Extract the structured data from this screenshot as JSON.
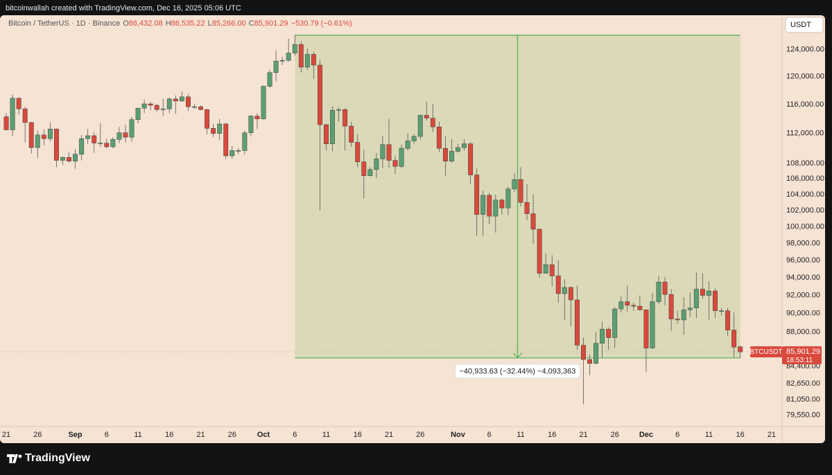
{
  "header": {
    "credit": "bitcoinwallah created with TradingView.com, Dec 16, 2025 05:06 UTC",
    "brand": "TradingView"
  },
  "chart_data": {
    "type": "candlestick",
    "legend": {
      "symbol": "Bitcoin / TetherUS · 1D · Binance",
      "fields": [
        {
          "key": "O",
          "value": "86,432.08"
        },
        {
          "key": "H",
          "value": "86,535.22"
        },
        {
          "key": "L",
          "value": "85,266.00"
        },
        {
          "key": "C",
          "value": "85,901.29"
        }
      ],
      "change": "−530.79 (−0.61%)"
    },
    "currency": "USDT",
    "symbol_tag": "BTCUSDT",
    "last_price_label": "85,901.29",
    "countdown": "18:53:11",
    "up_color": "#5b9f72",
    "down_color": "#d9493c",
    "log_scale": true,
    "grid": false,
    "x": [
      "Aug 21",
      "Aug 22",
      "Aug 23",
      "Aug 24",
      "Aug 25",
      "Aug 26",
      "Aug 27",
      "Aug 28",
      "Aug 29",
      "Aug 30",
      "Aug 31",
      "Sep 1",
      "Sep 2",
      "Sep 3",
      "Sep 4",
      "Sep 5",
      "Sep 6",
      "Sep 7",
      "Sep 8",
      "Sep 9",
      "Sep 10",
      "Sep 11",
      "Sep 12",
      "Sep 13",
      "Sep 14",
      "Sep 15",
      "Sep 16",
      "Sep 17",
      "Sep 18",
      "Sep 19",
      "Sep 20",
      "Sep 21",
      "Sep 22",
      "Sep 23",
      "Sep 24",
      "Sep 25",
      "Sep 26",
      "Sep 27",
      "Sep 28",
      "Sep 29",
      "Sep 30",
      "Oct 1",
      "Oct 2",
      "Oct 3",
      "Oct 4",
      "Oct 5",
      "Oct 6",
      "Oct 7",
      "Oct 8",
      "Oct 9",
      "Oct 10",
      "Oct 11",
      "Oct 12",
      "Oct 13",
      "Oct 14",
      "Oct 15",
      "Oct 16",
      "Oct 17",
      "Oct 18",
      "Oct 19",
      "Oct 20",
      "Oct 21",
      "Oct 22",
      "Oct 23",
      "Oct 24",
      "Oct 25",
      "Oct 26",
      "Oct 27",
      "Oct 28",
      "Oct 29",
      "Oct 30",
      "Oct 31",
      "Nov 1",
      "Nov 2",
      "Nov 3",
      "Nov 4",
      "Nov 5",
      "Nov 6",
      "Nov 7",
      "Nov 8",
      "Nov 9",
      "Nov 10",
      "Nov 11",
      "Nov 12",
      "Nov 13",
      "Nov 14",
      "Nov 15",
      "Nov 16",
      "Nov 17",
      "Nov 18",
      "Nov 19",
      "Nov 20",
      "Nov 21",
      "Nov 22",
      "Nov 23",
      "Nov 24",
      "Nov 25",
      "Nov 26",
      "Nov 27",
      "Nov 28",
      "Nov 29",
      "Nov 30",
      "Dec 1",
      "Dec 2",
      "Dec 3",
      "Dec 4",
      "Dec 5",
      "Dec 6",
      "Dec 7",
      "Dec 8",
      "Dec 9",
      "Dec 10",
      "Dec 11",
      "Dec 12",
      "Dec 13",
      "Dec 14",
      "Dec 15",
      "Dec 16"
    ],
    "open": [
      114300,
      112500,
      116900,
      115400,
      113500,
      110100,
      111800,
      111300,
      112600,
      108400,
      108800,
      108300,
      109200,
      111300,
      111700,
      110700,
      110700,
      110200,
      111200,
      112100,
      111500,
      113900,
      115500,
      116100,
      115900,
      115300,
      115400,
      116800,
      116500,
      117100,
      115700,
      115700,
      115300,
      112700,
      112000,
      113300,
      109000,
      109700,
      109700,
      112100,
      114400,
      114000,
      118600,
      120600,
      122300,
      122400,
      123500,
      124800,
      121400,
      123300,
      121700,
      113200,
      110600,
      115200,
      115300,
      113000,
      110800,
      108200,
      106400,
      107200,
      108600,
      110500,
      108400,
      107600,
      110000,
      111000,
      111600,
      114500,
      114100,
      112900,
      110000,
      108300,
      109600,
      110100,
      110600,
      106500,
      101500,
      103900,
      101300,
      103300,
      102300,
      104700,
      105900,
      103000,
      101600,
      99700,
      94500,
      95500,
      94200,
      92200,
      92900,
      91500,
      86600,
      85100,
      84700,
      86800,
      88300,
      87400,
      90500,
      91300,
      90900,
      90800,
      90400,
      86300,
      91300,
      93500,
      92100,
      89400,
      89300,
      90400,
      90600,
      92700,
      92000,
      92500,
      90300,
      90300,
      88200,
      86432.08
    ],
    "high": [
      114800,
      117400,
      117000,
      115700,
      113600,
      112400,
      112600,
      113500,
      112700,
      108900,
      109500,
      109900,
      111800,
      112600,
      112200,
      113400,
      111300,
      111500,
      112900,
      113200,
      114300,
      115500,
      116700,
      116400,
      116100,
      116800,
      117000,
      117300,
      117900,
      117500,
      116100,
      115900,
      115400,
      113300,
      114000,
      113500,
      110300,
      110000,
      112400,
      114500,
      114800,
      118700,
      121000,
      123900,
      122900,
      125700,
      126199.63,
      125300,
      124200,
      123700,
      122500,
      113300,
      115800,
      115600,
      115500,
      113600,
      111900,
      109800,
      107500,
      109400,
      111700,
      114000,
      109000,
      110500,
      112000,
      111900,
      114600,
      116400,
      116100,
      113600,
      111600,
      111200,
      110600,
      111200,
      110800,
      107300,
      104500,
      104200,
      104000,
      103500,
      105000,
      106700,
      107500,
      105300,
      104000,
      99800,
      96800,
      96600,
      96000,
      93800,
      93000,
      93100,
      87400,
      85600,
      88000,
      89100,
      88500,
      90700,
      91900,
      93100,
      91200,
      92000,
      90400,
      92300,
      94200,
      94100,
      92700,
      90300,
      91800,
      92300,
      94600,
      94500,
      93600,
      92800,
      90600,
      90600,
      90100,
      86535.22
    ],
    "low": [
      112400,
      111700,
      114600,
      110800,
      109300,
      108700,
      110400,
      110900,
      107500,
      107800,
      108100,
      107300,
      108400,
      110600,
      109400,
      110200,
      110000,
      110000,
      110700,
      110800,
      110900,
      113400,
      114800,
      115200,
      115000,
      114400,
      114800,
      114700,
      116400,
      115100,
      115400,
      115200,
      111900,
      111500,
      111100,
      108600,
      108600,
      109200,
      109200,
      111600,
      112600,
      113900,
      118400,
      119300,
      121700,
      122200,
      123100,
      120600,
      121000,
      119700,
      102000,
      109700,
      109600,
      113600,
      109700,
      110200,
      107500,
      103500,
      106300,
      106100,
      107400,
      107400,
      106600,
      107400,
      109700,
      110600,
      111200,
      113800,
      112200,
      109500,
      106300,
      108100,
      109400,
      109700,
      105300,
      98900,
      98900,
      100300,
      99300,
      101500,
      101400,
      104300,
      102500,
      100800,
      98000,
      94000,
      94500,
      93000,
      91200,
      89300,
      88600,
      86100,
      80600,
      83500,
      84600,
      85300,
      86100,
      86300,
      90100,
      90200,
      90300,
      90300,
      83800,
      86200,
      91000,
      90900,
      88100,
      88900,
      87700,
      89600,
      89500,
      91600,
      89300,
      89500,
      89800,
      87600,
      85300,
      85266.0
    ],
    "close": [
      112500,
      116900,
      115400,
      113500,
      110100,
      111800,
      111300,
      112600,
      108400,
      108800,
      108300,
      109200,
      111300,
      111700,
      110700,
      110700,
      110200,
      111200,
      112100,
      111500,
      113900,
      115500,
      116100,
      115900,
      115300,
      115400,
      116800,
      116500,
      117100,
      115700,
      115700,
      115300,
      112700,
      112000,
      113300,
      109000,
      109700,
      109700,
      112100,
      114400,
      114000,
      118600,
      120600,
      122300,
      122400,
      123500,
      124800,
      121400,
      123300,
      121700,
      113200,
      110600,
      115200,
      115300,
      113000,
      110800,
      108200,
      106400,
      107200,
      108600,
      110500,
      108400,
      107600,
      110000,
      111000,
      111600,
      114500,
      114100,
      112900,
      110000,
      108300,
      109600,
      110100,
      110600,
      106500,
      101500,
      103900,
      101300,
      103300,
      102300,
      104700,
      105900,
      103000,
      101600,
      99700,
      94500,
      95500,
      94200,
      92200,
      92900,
      91500,
      86600,
      85100,
      84700,
      86800,
      88300,
      87400,
      90500,
      91300,
      90900,
      90800,
      90400,
      86300,
      91300,
      93500,
      92100,
      89400,
      89300,
      90400,
      90600,
      92700,
      92000,
      92500,
      90300,
      90300,
      88200,
      86400,
      85901.29
    ],
    "measurement": {
      "from_date": "Oct 6",
      "to_date": "Dec 16",
      "from": 126199.63,
      "to": 85266.0,
      "label": "−40,933.63 (−32.44%) −4,093,363"
    },
    "xlim": [
      "Aug 20",
      "Dec 23"
    ],
    "ylim": [
      78450,
      129300
    ],
    "yticks": [
      {
        "value": 79550,
        "label": "79,550.00"
      },
      {
        "value": 81050,
        "label": "81,050.00"
      },
      {
        "value": 82650,
        "label": "82,650.00"
      },
      {
        "value": 84400,
        "label": "84,400.00"
      },
      {
        "value": 88000,
        "label": "88,000.00"
      },
      {
        "value": 90000,
        "label": "90,000.00"
      },
      {
        "value": 92000,
        "label": "92,000.00"
      },
      {
        "value": 94000,
        "label": "94,000.00"
      },
      {
        "value": 96000,
        "label": "96,000.00"
      },
      {
        "value": 98000,
        "label": "98,000.00"
      },
      {
        "value": 100000,
        "label": "100,000.00"
      },
      {
        "value": 102000,
        "label": "102,000.00"
      },
      {
        "value": 104000,
        "label": "104,000.00"
      },
      {
        "value": 106000,
        "label": "106,000.00"
      },
      {
        "value": 108000,
        "label": "108,000.00"
      },
      {
        "value": 112000,
        "label": "112,000.00"
      },
      {
        "value": 116000,
        "label": "116,000.00"
      },
      {
        "value": 120000,
        "label": "120,000.00"
      },
      {
        "value": 124000,
        "label": "124,000.00"
      }
    ],
    "xticks": [
      {
        "value": "Aug 21",
        "label": "21"
      },
      {
        "value": "Aug 26",
        "label": "26"
      },
      {
        "value": "Sep 1",
        "label": "Sep"
      },
      {
        "value": "Sep 6",
        "label": "6"
      },
      {
        "value": "Sep 11",
        "label": "11"
      },
      {
        "value": "Sep 16",
        "label": "16"
      },
      {
        "value": "Sep 21",
        "label": "21"
      },
      {
        "value": "Sep 26",
        "label": "26"
      },
      {
        "value": "Oct 1",
        "label": "Oct"
      },
      {
        "value": "Oct 6",
        "label": "6"
      },
      {
        "value": "Oct 11",
        "label": "11"
      },
      {
        "value": "Oct 16",
        "label": "16"
      },
      {
        "value": "Oct 21",
        "label": "21"
      },
      {
        "value": "Oct 26",
        "label": "26"
      },
      {
        "value": "Nov 1",
        "label": "Nov"
      },
      {
        "value": "Nov 6",
        "label": "6"
      },
      {
        "value": "Nov 11",
        "label": "11"
      },
      {
        "value": "Nov 16",
        "label": "16"
      },
      {
        "value": "Nov 21",
        "label": "21"
      },
      {
        "value": "Nov 26",
        "label": "26"
      },
      {
        "value": "Dec 1",
        "label": "Dec"
      },
      {
        "value": "Dec 6",
        "label": "6"
      },
      {
        "value": "Dec 11",
        "label": "11"
      },
      {
        "value": "Dec 16",
        "label": "16"
      },
      {
        "value": "Dec 21",
        "label": "21"
      }
    ]
  }
}
